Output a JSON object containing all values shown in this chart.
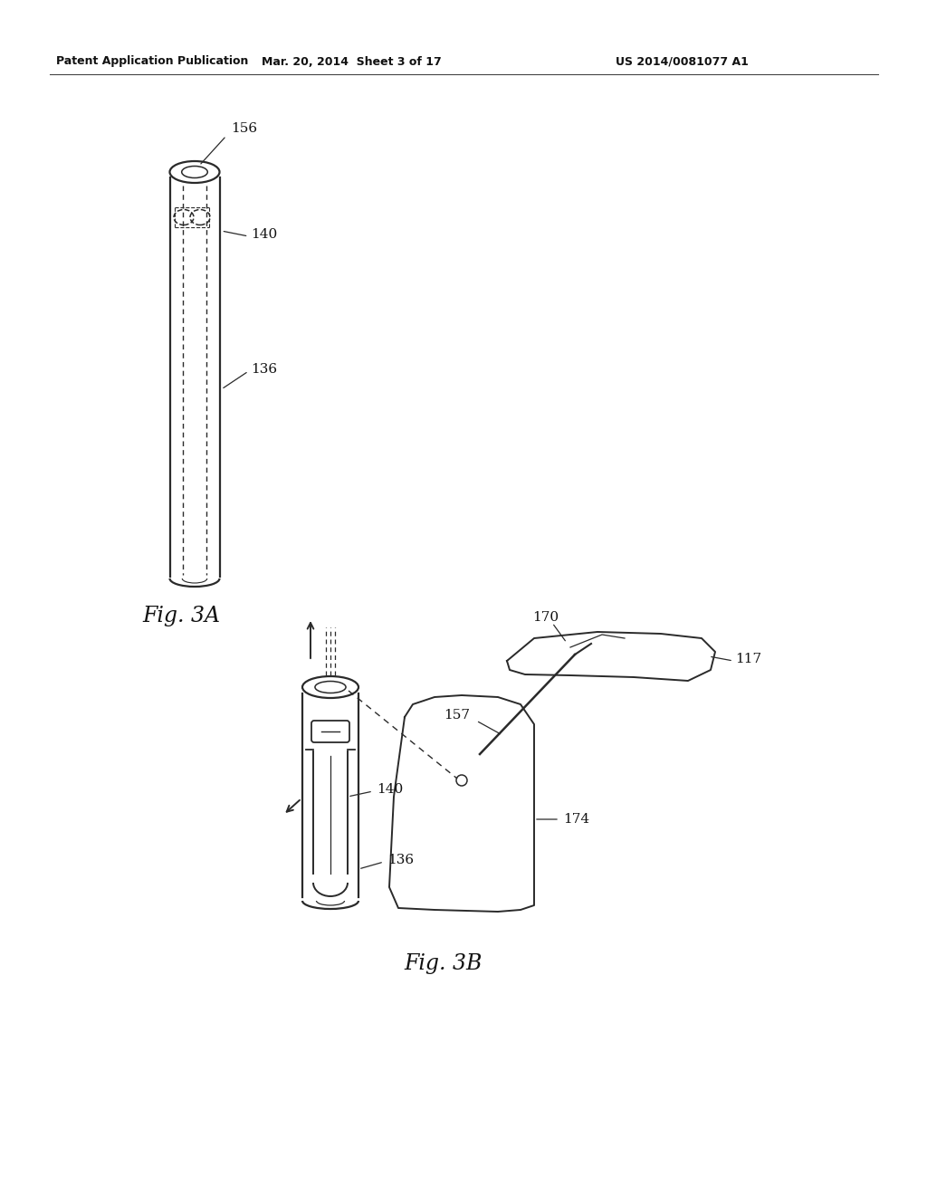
{
  "bg_color": "#ffffff",
  "header_left": "Patent Application Publication",
  "header_mid": "Mar. 20, 2014  Sheet 3 of 17",
  "header_right": "US 2014/0081077 A1",
  "fig3a_label": "Fig. 3A",
  "fig3b_label": "Fig. 3B",
  "label_156": "156",
  "label_140": "140",
  "label_136": "136",
  "label_140b": "140",
  "label_136b": "136",
  "label_157": "157",
  "label_170": "170",
  "label_117": "117",
  "label_174": "174",
  "col": "#2a2a2a"
}
